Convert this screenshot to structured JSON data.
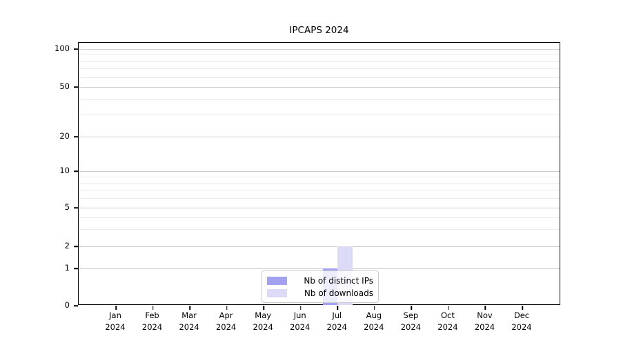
{
  "chart_data": {
    "type": "bar",
    "title": "IPCAPS 2024",
    "categories": [
      "Jan 2024",
      "Feb 2024",
      "Mar 2024",
      "Apr 2024",
      "May 2024",
      "Jun 2024",
      "Jul 2024",
      "Aug 2024",
      "Sep 2024",
      "Oct 2024",
      "Nov 2024",
      "Dec 2024"
    ],
    "series": [
      {
        "name": "Nb of distinct IPs",
        "color": "#a2a2f0",
        "values": [
          0,
          0,
          0,
          0,
          0,
          0,
          1,
          0,
          0,
          0,
          0,
          0
        ]
      },
      {
        "name": "Nb of downloads",
        "color": "#dbdbf8",
        "values": [
          0,
          0,
          0,
          0,
          0,
          0,
          2,
          0,
          0,
          0,
          0,
          0
        ]
      }
    ],
    "xlabel": "",
    "ylabel": "",
    "yscale": "symlog",
    "ylim": [
      0,
      112
    ],
    "yticks_major": [
      0,
      1,
      2,
      5,
      10,
      20,
      50,
      100
    ],
    "yticks_minor": [
      3,
      4,
      6,
      7,
      8,
      9,
      30,
      40,
      60,
      70,
      80,
      90
    ],
    "grid": "horizontal, major and minor, on",
    "legend_position": "lower center"
  },
  "colors": {
    "major_grid": "#cdcdcd",
    "minor_grid": "#ececec",
    "spine": "#000000",
    "background": "#ffffff"
  }
}
